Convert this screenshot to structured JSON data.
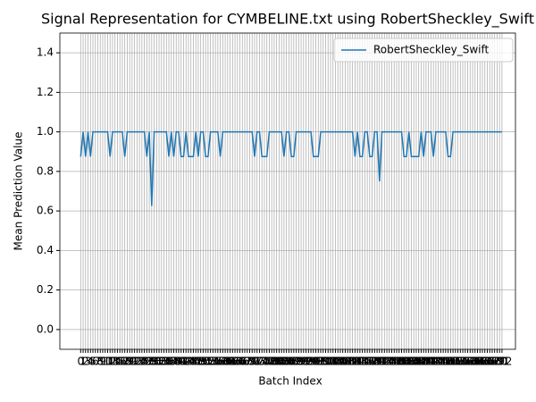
{
  "chart_data": {
    "type": "line",
    "title": "Signal Representation for CYMBELINE.txt using RobertSheckley_Swift",
    "x_label": "Batch Index",
    "y_label": "Mean Prediction Value",
    "x": [
      0,
      1,
      2,
      3,
      4,
      5,
      6,
      7,
      8,
      9,
      10,
      11,
      12,
      13,
      14,
      15,
      16,
      17,
      18,
      19,
      20,
      21,
      22,
      23,
      24,
      25,
      26,
      27,
      28,
      29,
      30,
      31,
      32,
      33,
      34,
      35,
      36,
      37,
      38,
      39,
      40,
      41,
      42,
      43,
      44,
      45,
      46,
      47,
      48,
      49,
      50,
      51,
      52,
      53,
      54,
      55,
      56,
      57,
      58,
      59,
      60,
      61,
      62,
      63,
      64,
      65,
      66,
      67,
      68,
      69,
      70,
      71,
      72,
      73,
      74,
      75,
      76,
      77,
      78,
      79,
      80,
      81,
      82,
      83,
      84,
      85,
      86,
      87,
      88,
      89,
      90,
      91,
      92,
      93,
      94,
      95,
      96,
      97,
      98,
      99,
      100,
      101,
      102,
      103,
      104,
      105,
      106,
      107,
      108,
      109,
      110,
      111,
      112,
      113,
      114,
      115,
      116,
      117,
      118,
      119,
      120,
      121,
      122,
      123,
      124,
      125,
      126,
      127,
      128,
      129,
      130,
      131,
      132,
      133,
      134,
      135,
      136,
      137,
      138,
      139,
      140,
      141,
      142,
      143,
      144,
      145,
      146,
      147,
      148,
      149,
      150,
      151,
      152,
      153,
      154,
      155,
      156,
      157,
      158,
      159,
      160,
      161,
      162,
      163,
      164,
      165,
      166,
      167,
      168,
      169,
      170,
      171,
      172
    ],
    "series": [
      {
        "name": "RobertSheckley_Swift",
        "color": "#1f77b4",
        "values": [
          0.875,
          1,
          0.875,
          1,
          0.875,
          1,
          1,
          1,
          1,
          1,
          1,
          1,
          0.875,
          1,
          1,
          1,
          1,
          1,
          0.875,
          1,
          1,
          1,
          1,
          1,
          1,
          1,
          1,
          0.875,
          1,
          0.625,
          1,
          1,
          1,
          1,
          1,
          1,
          0.875,
          1,
          0.875,
          1,
          1,
          0.875,
          0.875,
          1,
          0.875,
          0.875,
          0.875,
          1,
          0.875,
          1,
          1,
          0.875,
          0.875,
          1,
          1,
          1,
          1,
          0.875,
          1,
          1,
          1,
          1,
          1,
          1,
          1,
          1,
          1,
          1,
          1,
          1,
          1,
          0.875,
          1,
          1,
          0.875,
          0.875,
          0.875,
          1,
          1,
          1,
          1,
          1,
          1,
          0.875,
          1,
          1,
          0.875,
          0.875,
          1,
          1,
          1,
          1,
          1,
          1,
          1,
          0.875,
          0.875,
          0.875,
          1,
          1,
          1,
          1,
          1,
          1,
          1,
          1,
          1,
          1,
          1,
          1,
          1,
          1,
          0.875,
          1,
          0.875,
          0.875,
          1,
          1,
          0.875,
          0.875,
          1,
          1,
          0.75,
          1,
          1,
          1,
          1,
          1,
          1,
          1,
          1,
          1,
          0.875,
          0.875,
          1,
          0.875,
          0.875,
          0.875,
          0.875,
          1,
          0.875,
          1,
          1,
          1,
          0.875,
          1,
          1,
          1,
          1,
          1,
          0.875,
          0.875,
          1,
          1,
          1,
          1,
          1,
          1,
          1,
          1,
          1,
          1,
          1,
          1,
          1,
          1,
          1,
          1,
          1,
          1,
          1,
          1,
          1
        ]
      }
    ],
    "xlim": [
      -8.5,
      177.5
    ],
    "ylim": [
      -0.1,
      1.5
    ],
    "yticks": [
      {
        "value": 0,
        "label": "0.0"
      },
      {
        "value": 0.2,
        "label": "0.2"
      },
      {
        "value": 0.4,
        "label": "0.4"
      },
      {
        "value": 0.6,
        "label": "0.6"
      },
      {
        "value": 0.8,
        "label": "0.8"
      },
      {
        "value": 1,
        "label": "1.0"
      },
      {
        "value": 1.2,
        "label": "1.2"
      },
      {
        "value": 1.4,
        "label": "1.4"
      }
    ],
    "grid": true,
    "legend": "upper right"
  }
}
